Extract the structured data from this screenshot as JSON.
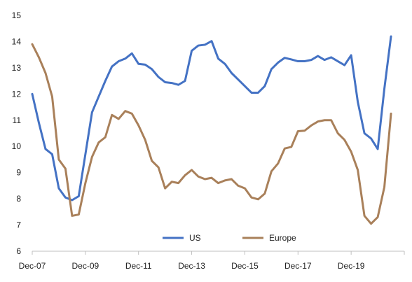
{
  "chart_data": {
    "type": "line",
    "title": "",
    "xlabel": "",
    "ylabel": "",
    "ylim": [
      6,
      15
    ],
    "yticks": [
      6,
      7,
      8,
      9,
      10,
      11,
      12,
      13,
      14,
      15
    ],
    "xlim": [
      0,
      56
    ],
    "xticks": [
      {
        "label": "Dec-07",
        "x": 0
      },
      {
        "label": "Dec-09",
        "x": 8
      },
      {
        "label": "Dec-11",
        "x": 16
      },
      {
        "label": "Dec-13",
        "x": 24
      },
      {
        "label": "Dec-15",
        "x": 32
      },
      {
        "label": "Dec-17",
        "x": 40
      },
      {
        "label": "Dec-19",
        "x": 48
      }
    ],
    "x_unit": "quarters since Dec-07",
    "grid": false,
    "legend": "bottom-center",
    "series": [
      {
        "name": "US",
        "color": "#4472C4",
        "values": [
          12.0,
          10.9,
          9.9,
          9.7,
          8.4,
          8.05,
          7.95,
          8.1,
          9.7,
          11.3,
          11.9,
          12.5,
          13.05,
          13.25,
          13.35,
          13.55,
          13.15,
          13.12,
          12.95,
          12.65,
          12.45,
          12.42,
          12.35,
          12.5,
          13.65,
          13.85,
          13.88,
          14.02,
          13.35,
          13.15,
          12.8,
          12.55,
          12.3,
          12.05,
          12.05,
          12.3,
          12.95,
          13.2,
          13.38,
          13.32,
          13.25,
          13.25,
          13.3,
          13.45,
          13.3,
          13.4,
          13.25,
          13.1,
          13.48,
          11.7,
          10.5,
          10.3,
          9.9,
          12.2,
          14.2
        ]
      },
      {
        "name": "Europe",
        "color": "#A9805A",
        "values": [
          13.9,
          13.4,
          12.8,
          11.9,
          9.5,
          9.15,
          7.35,
          7.4,
          8.6,
          9.6,
          10.15,
          10.35,
          11.2,
          11.05,
          11.35,
          11.25,
          10.8,
          10.25,
          9.45,
          9.2,
          8.4,
          8.65,
          8.6,
          8.9,
          9.1,
          8.85,
          8.75,
          8.8,
          8.6,
          8.7,
          8.75,
          8.5,
          8.4,
          8.05,
          7.98,
          8.2,
          9.05,
          9.35,
          9.92,
          9.98,
          10.58,
          10.6,
          10.8,
          10.95,
          11.0,
          11.0,
          10.5,
          10.25,
          9.8,
          9.1,
          7.35,
          7.05,
          7.3,
          8.45,
          11.25
        ]
      }
    ]
  }
}
